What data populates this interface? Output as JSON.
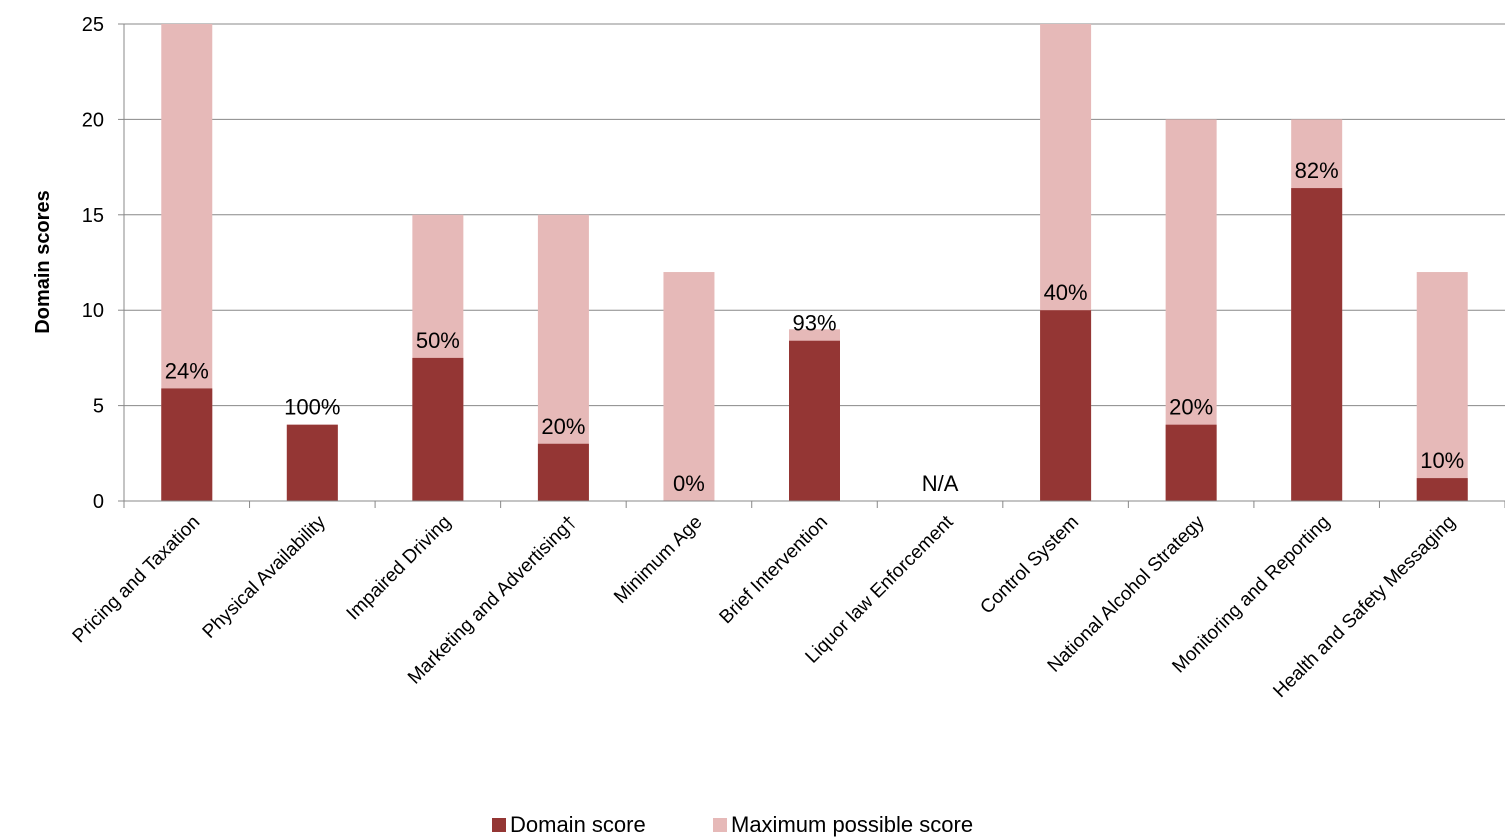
{
  "chart_data": {
    "type": "bar",
    "y_label": "Domain scores",
    "categories": [
      "Pricing and Taxation",
      "Physical Availability",
      "Impaired Driving",
      "Marketing and Advertising†",
      "Minimum Age",
      "Brief Intervention",
      "Liquor law Enforcement",
      "Control System",
      "National Alcohol Strategy",
      "Monitoring and Reporting",
      "Health and Safety Messaging"
    ],
    "series": [
      {
        "name": "Domain score",
        "color": "#943634",
        "values": [
          5.9,
          4,
          7.5,
          3,
          0,
          8.4,
          null,
          10,
          4,
          16.4,
          1.2
        ]
      },
      {
        "name": "Maximum possible score",
        "color": "#e6b9b8",
        "values": [
          25,
          4,
          15,
          15,
          12,
          9,
          null,
          25,
          20,
          20,
          12
        ]
      }
    ],
    "annotations": [
      "24%",
      "100%",
      "50%",
      "20%",
      "0%",
      "93%",
      "N/A",
      "40%",
      "20%",
      "82%",
      "10%"
    ],
    "ylim": [
      0,
      25
    ],
    "yticks": [
      0,
      5,
      10,
      15,
      20,
      25
    ],
    "grid": true,
    "legend": "bottom"
  }
}
